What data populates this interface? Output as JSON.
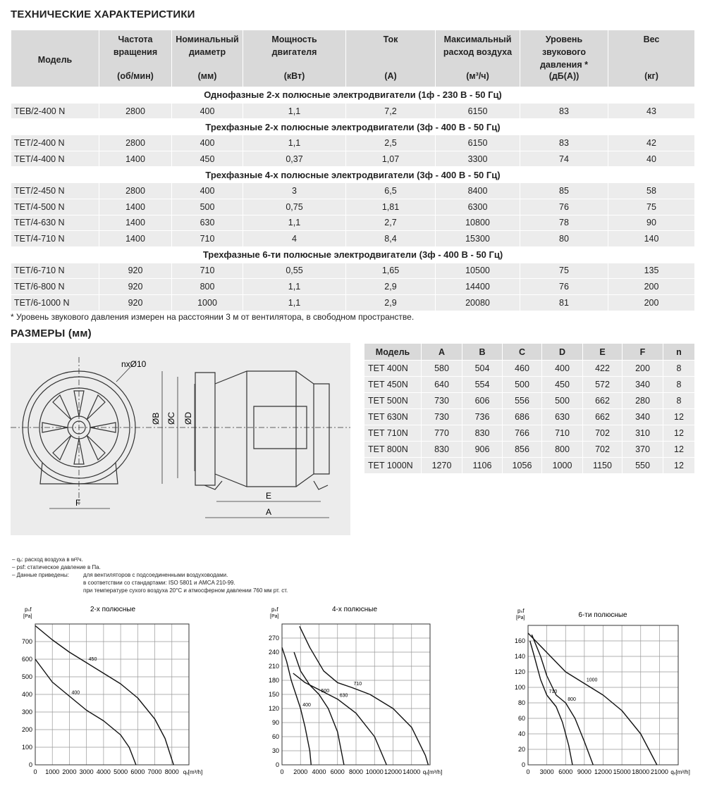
{
  "title": "ТЕХНИЧЕСКИЕ ХАРАКТЕРИСТИКИ",
  "spec_table": {
    "headers": [
      {
        "lines": [
          "Модель"
        ]
      },
      {
        "lines": [
          "Частота",
          "вращения"
        ],
        "unit": "(об/мин)"
      },
      {
        "lines": [
          "Номинальный",
          "диаметр"
        ],
        "unit": "(мм)"
      },
      {
        "lines": [
          "Мощность",
          "двигателя"
        ],
        "unit": "(кВт)"
      },
      {
        "lines": [
          "Ток"
        ],
        "unit": "(А)"
      },
      {
        "lines": [
          "Максимальный",
          "расход воздуха"
        ],
        "unit": "(м³/ч)"
      },
      {
        "lines": [
          "Уровень",
          "звукового",
          "давления *"
        ],
        "unit": "(дБ(А))"
      },
      {
        "lines": [
          "Вес"
        ],
        "unit": "(кг)"
      }
    ],
    "groups": [
      {
        "title": "Однофазные 2-х полюсные электродвигатели (1ф - 230 В - 50 Гц)",
        "rows": [
          [
            "TEB/2-400 N",
            "2800",
            "400",
            "1,1",
            "7,2",
            "6150",
            "83",
            "43"
          ]
        ]
      },
      {
        "title": "Трехфазные 2-х полюсные электродвигатели (3ф - 400 В - 50 Гц)",
        "rows": [
          [
            "TET/2-400 N",
            "2800",
            "400",
            "1,1",
            "2,5",
            "6150",
            "83",
            "42"
          ],
          [
            "TET/4-400 N",
            "1400",
            "450",
            "0,37",
            "1,07",
            "3300",
            "74",
            "40"
          ]
        ]
      },
      {
        "title": "Трехфазные 4-х полюсные электродвигатели (3ф - 400 В - 50 Гц)",
        "rows": [
          [
            "TET/2-450 N",
            "2800",
            "400",
            "3",
            "6,5",
            "8400",
            "85",
            "58"
          ],
          [
            "TET/4-500 N",
            "1400",
            "500",
            "0,75",
            "1,81",
            "6300",
            "76",
            "75"
          ],
          [
            "TET/4-630 N",
            "1400",
            "630",
            "1,1",
            "2,7",
            "10800",
            "78",
            "90"
          ],
          [
            "TET/4-710 N",
            "1400",
            "710",
            "4",
            "8,4",
            "15300",
            "80",
            "140"
          ]
        ]
      },
      {
        "title": "Трехфазные 6-ти полюсные электродвигатели (3ф - 400 В - 50 Гц)",
        "rows": [
          [
            "TET/6-710 N",
            "920",
            "710",
            "0,55",
            "1,65",
            "10500",
            "75",
            "135"
          ],
          [
            "TET/6-800 N",
            "920",
            "800",
            "1,1",
            "2,9",
            "14400",
            "76",
            "200"
          ],
          [
            "TET/6-1000 N",
            "920",
            "1000",
            "1,1",
            "2,9",
            "20080",
            "81",
            "200"
          ]
        ]
      }
    ]
  },
  "footnote": "* Уровень звукового давления измерен на расстоянии 3 м от вентилятора, в свободном пространстве.",
  "dimensions_title": "РАЗМЕРЫ (мм)",
  "drawing": {
    "holes": "nxØ10",
    "b": "ØB",
    "c": "ØC",
    "d": "ØD",
    "f": "F",
    "e": "E",
    "a": "A"
  },
  "dim_table": {
    "headers": [
      "Модель",
      "A",
      "B",
      "C",
      "D",
      "E",
      "F",
      "n"
    ],
    "rows": [
      [
        "TET 400N",
        "580",
        "504",
        "460",
        "400",
        "422",
        "200",
        "8"
      ],
      [
        "TET 450N",
        "640",
        "554",
        "500",
        "450",
        "572",
        "340",
        "8"
      ],
      [
        "TET 500N",
        "730",
        "606",
        "556",
        "500",
        "662",
        "280",
        "8"
      ],
      [
        "TET 630N",
        "730",
        "736",
        "686",
        "630",
        "662",
        "340",
        "12"
      ],
      [
        "TET 710N",
        "770",
        "830",
        "766",
        "710",
        "702",
        "310",
        "12"
      ],
      [
        "TET 800N",
        "830",
        "906",
        "856",
        "800",
        "702",
        "370",
        "12"
      ],
      [
        "TET 1000N",
        "1270",
        "1106",
        "1056",
        "1000",
        "1150",
        "550",
        "12"
      ]
    ]
  },
  "notes": {
    "lines": [
      "– qᵥ: расход воздуха в м³/ч.",
      "– psf: статическое давление в Па.",
      "– Данные приведены:"
    ],
    "details": [
      "для вентиляторов с подсоединенными воздуховодами.",
      "в соответствии со стандартами: ISO 5801 и AMCA 210-99.",
      "при температуре сухого воздуха 20°C и атмосферном давлении 760 мм рт. ст."
    ]
  },
  "chart_data": [
    {
      "type": "line",
      "title": "2-х полюсные",
      "y_label": "pₛf",
      "y_unit": "[Pa]",
      "x_label": "qᵥ[m³/h]",
      "xlim": [
        0,
        9000
      ],
      "xticks": [
        0,
        1000,
        2000,
        3000,
        4000,
        5000,
        6000,
        7000,
        8000
      ],
      "ylim": [
        0,
        800
      ],
      "yticks": [
        0,
        100,
        200,
        300,
        400,
        500,
        600,
        700
      ],
      "grid": true,
      "series": [
        {
          "name": "450",
          "color": "#111111",
          "x": [
            0,
            1000,
            2000,
            3000,
            4000,
            5000,
            6000,
            7000,
            7600,
            8100
          ],
          "values": [
            790,
            710,
            640,
            580,
            520,
            460,
            380,
            260,
            150,
            0
          ]
        },
        {
          "name": "400",
          "color": "#111111",
          "x": [
            0,
            1000,
            2000,
            3000,
            4000,
            5000,
            5500,
            5900
          ],
          "values": [
            600,
            470,
            390,
            310,
            250,
            170,
            100,
            0
          ]
        }
      ]
    },
    {
      "type": "line",
      "title": "4-х полюсные",
      "y_label": "pₛf",
      "y_unit": "[Pa]",
      "x_label": "qᵥ[m³/h]",
      "xlim": [
        0,
        16000
      ],
      "xticks": [
        0,
        2000,
        4000,
        6000,
        8000,
        10000,
        12000,
        14000
      ],
      "ylim": [
        0,
        300
      ],
      "yticks": [
        0,
        30,
        60,
        90,
        120,
        150,
        180,
        210,
        240,
        270
      ],
      "grid": true,
      "series": [
        {
          "name": "400",
          "color": "#111111",
          "x": [
            0,
            500,
            1000,
            1500,
            2000,
            2500,
            3000,
            3150
          ],
          "values": [
            250,
            220,
            180,
            150,
            120,
            80,
            30,
            0
          ]
        },
        {
          "name": "500",
          "color": "#111111",
          "x": [
            1300,
            2000,
            3000,
            4000,
            5000,
            6000,
            6700
          ],
          "values": [
            240,
            200,
            170,
            150,
            120,
            70,
            0
          ]
        },
        {
          "name": "630",
          "color": "#111111",
          "x": [
            1200,
            2500,
            4000,
            6000,
            8000,
            10000,
            11300
          ],
          "values": [
            195,
            175,
            160,
            140,
            110,
            60,
            0
          ]
        },
        {
          "name": "710",
          "color": "#111111",
          "x": [
            1900,
            3000,
            4500,
            6000,
            7500,
            9500,
            12000,
            14000,
            15500,
            15800
          ],
          "values": [
            295,
            250,
            200,
            175,
            165,
            150,
            120,
            80,
            20,
            0
          ]
        }
      ]
    },
    {
      "type": "line",
      "title": "6-ти полюсные",
      "y_label": "pₛf",
      "y_unit": "[Pa]",
      "x_label": "qᵥ[m³/h]",
      "xlim": [
        0,
        24000
      ],
      "xticks": [
        0,
        3000,
        6000,
        9000,
        12000,
        15000,
        18000,
        21000
      ],
      "ylim": [
        0,
        180
      ],
      "yticks": [
        0,
        20,
        40,
        60,
        80,
        100,
        120,
        140,
        160
      ],
      "grid": true,
      "series": [
        {
          "name": "710",
          "color": "#111111",
          "x": [
            300,
            1000,
            2000,
            3000,
            4500,
            5500,
            6500,
            7100
          ],
          "values": [
            160,
            140,
            110,
            90,
            75,
            55,
            25,
            0
          ]
        },
        {
          "name": "800",
          "color": "#111111",
          "x": [
            600,
            2000,
            3000,
            4500,
            6000,
            7500,
            9000,
            10400
          ],
          "values": [
            168,
            140,
            115,
            90,
            80,
            60,
            30,
            0
          ]
        },
        {
          "name": "1000",
          "color": "#111111",
          "x": [
            0,
            3000,
            6000,
            9000,
            12000,
            15000,
            18000,
            20600
          ],
          "values": [
            170,
            145,
            120,
            105,
            90,
            70,
            40,
            0
          ]
        }
      ]
    }
  ]
}
